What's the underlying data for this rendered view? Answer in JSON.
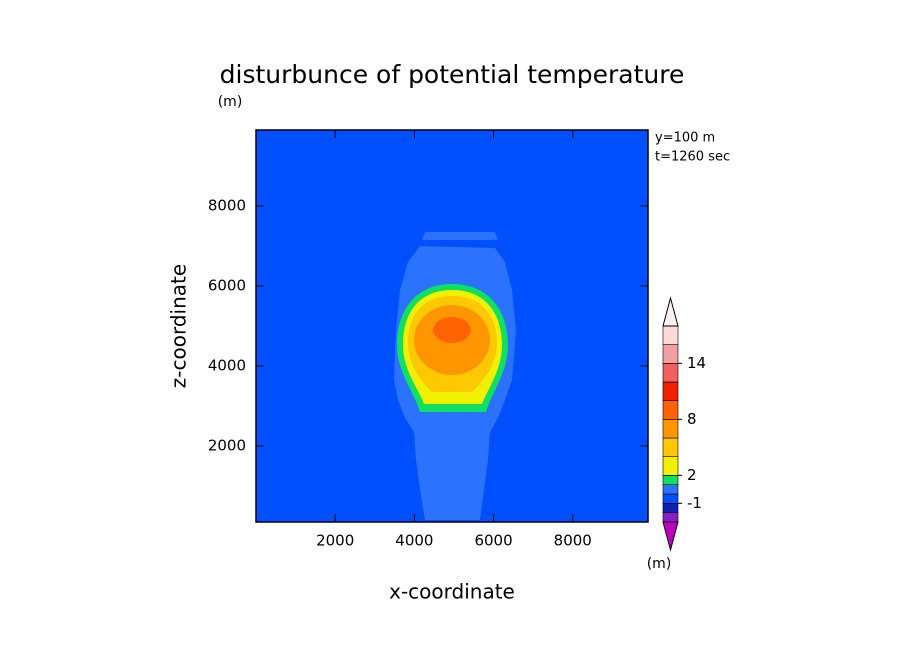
{
  "chart_data": {
    "type": "contour",
    "title": "disturbunce of potential temperature",
    "title_unit": "(m)",
    "annotations": [
      "y=100 m",
      "t=1260 sec"
    ],
    "x_label": "x-coordinate",
    "y_label": "z-coordinate",
    "xlim": [
      0,
      9900
    ],
    "ylim": [
      100,
      9900
    ],
    "xticks": [
      2000,
      4000,
      6000,
      8000
    ],
    "yticks": [
      2000,
      4000,
      6000,
      8000
    ],
    "colorbar": {
      "levels": [
        -3,
        -2,
        -1,
        0,
        1,
        2,
        4,
        6,
        8,
        10,
        12,
        14,
        16,
        18
      ],
      "colors": [
        "#8c1cc8",
        "#1020b0",
        "#0050ff",
        "#2a72ff",
        "#10e060",
        "#f0f000",
        "#ffc800",
        "#ff9600",
        "#ff6400",
        "#f02000",
        "#f06060",
        "#f0a0a0",
        "#ffd8d8"
      ],
      "extend_colors": [
        "#c000c0",
        "#fff0f0"
      ],
      "ticks": [
        -1,
        2,
        8,
        14
      ],
      "unit": "(m)"
    }
  }
}
